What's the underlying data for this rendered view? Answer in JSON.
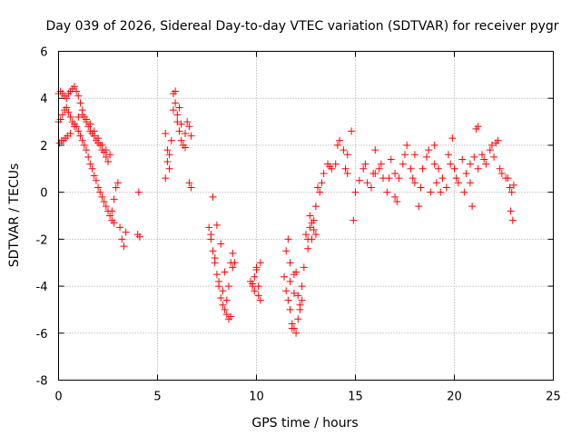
{
  "colors": {
    "series": "#ff0000",
    "grid": "#a0a0a0",
    "frame": "#000000"
  },
  "chart_data": {
    "type": "scatter",
    "title": "Day 039 of 2026, Sidereal Day-to-day VTEC variation (SDTVAR) for receiver pygr",
    "xlabel": "GPS time / hours",
    "ylabel": "SDTVAR / TECUs",
    "xlim": [
      0,
      25
    ],
    "ylim": [
      -8,
      6
    ],
    "xticks": [
      0,
      5,
      10,
      15,
      20,
      25
    ],
    "yticks": [
      -8,
      -6,
      -4,
      -2,
      0,
      2,
      4,
      6
    ],
    "grid": true,
    "marker": "+",
    "series": [
      {
        "name": "SDTVAR",
        "x": [
          0.0,
          0.1,
          0.2,
          0.3,
          0.4,
          0.5,
          0.6,
          0.7,
          0.8,
          0.9,
          1.0,
          1.1,
          1.2,
          1.3,
          1.4,
          1.5,
          1.6,
          1.7,
          1.8,
          1.9,
          2.0,
          2.1,
          2.2,
          2.3,
          2.4,
          2.5,
          0.0,
          0.1,
          0.2,
          0.3,
          0.4,
          0.5,
          0.6,
          0.7,
          0.8,
          0.9,
          1.0,
          1.1,
          1.2,
          1.3,
          1.4,
          1.5,
          1.6,
          1.7,
          1.8,
          1.9,
          2.0,
          2.1,
          2.2,
          2.3,
          2.4,
          2.5,
          2.6,
          2.7,
          2.8,
          0.05,
          0.15,
          0.25,
          0.35,
          0.45,
          0.6,
          0.8,
          1.0,
          1.2,
          1.4,
          1.6,
          1.8,
          2.0,
          2.2,
          2.4,
          2.6,
          2.7,
          2.8,
          2.9,
          3.0,
          3.1,
          3.2,
          3.3,
          3.4,
          4.0,
          4.1,
          4.05,
          5.4,
          5.5,
          5.6,
          5.7,
          5.8,
          5.9,
          6.0,
          6.1,
          6.2,
          6.3,
          6.4,
          6.5,
          6.6,
          6.7,
          5.6,
          5.8,
          6.0,
          6.2,
          6.4,
          5.4,
          5.5,
          5.9,
          6.1,
          6.6,
          6.7,
          7.6,
          7.7,
          7.8,
          7.9,
          8.0,
          8.1,
          8.2,
          8.3,
          8.4,
          8.5,
          8.6,
          8.7,
          8.8,
          7.7,
          7.9,
          8.1,
          8.3,
          8.5,
          8.7,
          7.8,
          8.0,
          8.2,
          8.4,
          8.6,
          8.8,
          8.9,
          9.7,
          9.8,
          9.9,
          10.0,
          10.1,
          10.2,
          9.8,
          10.0,
          10.2,
          9.9,
          10.1,
          11.4,
          11.5,
          11.6,
          11.7,
          11.8,
          11.9,
          12.0,
          12.1,
          12.2,
          12.3,
          12.4,
          11.5,
          11.7,
          11.9,
          12.1,
          12.3,
          11.6,
          11.8,
          12.0,
          12.2,
          11.7,
          11.9,
          12.5,
          12.6,
          12.7,
          12.8,
          12.9,
          13.0,
          13.1,
          12.6,
          12.8,
          13.0,
          12.7,
          12.9,
          13.2,
          13.4,
          13.6,
          13.8,
          14.0,
          14.2,
          14.4,
          14.6,
          14.8,
          15.0,
          13.3,
          13.7,
          14.1,
          14.5,
          14.9,
          14.6,
          15.2,
          15.4,
          15.6,
          15.8,
          16.0,
          16.2,
          16.4,
          16.6,
          16.8,
          17.0,
          17.2,
          17.4,
          17.6,
          17.8,
          18.0,
          18.2,
          18.4,
          18.6,
          18.8,
          19.0,
          15.5,
          15.9,
          16.3,
          16.7,
          17.1,
          17.5,
          17.9,
          18.3,
          18.7,
          19.1,
          16.0,
          17.0,
          18.0,
          19.0,
          19.2,
          19.4,
          19.6,
          19.8,
          20.0,
          20.2,
          20.4,
          20.6,
          20.8,
          21.0,
          21.2,
          19.3,
          19.7,
          20.1,
          20.5,
          20.9,
          21.1,
          21.2,
          20.8,
          19.9,
          21.4,
          21.6,
          21.8,
          22.0,
          22.2,
          22.4,
          22.6,
          22.8,
          22.9,
          23.0,
          21.5,
          21.9,
          22.3,
          22.7,
          22.85,
          22.95,
          22.1
        ],
        "y": [
          4.2,
          4.3,
          4.2,
          4.1,
          4.0,
          4.2,
          4.3,
          4.4,
          4.5,
          4.3,
          4.1,
          3.8,
          3.5,
          3.2,
          3.0,
          2.8,
          2.6,
          2.5,
          2.4,
          2.2,
          2.1,
          2.0,
          1.8,
          1.7,
          1.5,
          1.3,
          3.0,
          3.1,
          3.3,
          3.5,
          3.6,
          3.4,
          3.2,
          3.0,
          2.9,
          2.8,
          2.6,
          2.4,
          2.2,
          2.0,
          1.8,
          1.5,
          1.2,
          1.0,
          0.7,
          0.5,
          0.2,
          0.0,
          -0.2,
          -0.4,
          -0.6,
          -0.8,
          -1.0,
          -1.2,
          -1.3,
          2.1,
          2.2,
          2.2,
          2.3,
          2.4,
          2.5,
          2.8,
          3.2,
          3.3,
          3.1,
          2.9,
          2.6,
          2.3,
          2.0,
          1.8,
          1.6,
          -0.8,
          -0.3,
          0.2,
          0.4,
          -1.5,
          -2.0,
          -2.3,
          -1.7,
          -1.8,
          -1.9,
          0.0,
          2.5,
          1.3,
          1.0,
          2.2,
          4.2,
          3.8,
          3.0,
          2.6,
          2.2,
          2.0,
          2.5,
          3.0,
          2.8,
          2.4,
          1.6,
          3.5,
          3.3,
          2.9,
          1.9,
          0.6,
          1.8,
          4.3,
          3.6,
          0.4,
          0.2,
          -1.5,
          -2.0,
          -2.5,
          -3.0,
          -3.5,
          -4.0,
          -4.5,
          -4.8,
          -5.0,
          -5.2,
          -5.4,
          -5.3,
          -3.2,
          -1.8,
          -2.8,
          -3.8,
          -4.2,
          -4.6,
          -3.0,
          -0.2,
          -1.4,
          -2.2,
          -3.4,
          -4.0,
          -2.6,
          -3.0,
          -3.8,
          -4.0,
          -3.6,
          -3.2,
          -4.4,
          -4.6,
          -3.9,
          -3.3,
          -3.0,
          -4.2,
          -4.0,
          -3.6,
          -4.2,
          -4.6,
          -5.0,
          -5.6,
          -5.8,
          -6.0,
          -5.4,
          -4.8,
          -4.0,
          -3.2,
          -2.5,
          -3.0,
          -3.5,
          -4.4,
          -4.6,
          -2.0,
          -5.8,
          -3.4,
          -5.0,
          -3.8,
          -4.3,
          -1.8,
          -2.0,
          -1.5,
          -2.0,
          -1.6,
          -0.6,
          0.2,
          -2.4,
          -1.3,
          -1.8,
          -1.0,
          -1.2,
          0.0,
          0.8,
          1.2,
          1.0,
          1.2,
          2.2,
          1.8,
          1.6,
          2.6,
          0.0,
          0.4,
          1.1,
          2.0,
          1.0,
          -1.2,
          0.8,
          0.5,
          1.0,
          0.4,
          0.2,
          0.8,
          1.0,
          0.6,
          0.0,
          1.4,
          0.8,
          0.6,
          1.2,
          2.0,
          1.0,
          0.4,
          -0.6,
          1.0,
          1.5,
          0.0,
          1.2,
          1.2,
          0.8,
          1.2,
          0.6,
          -0.4,
          1.6,
          0.6,
          0.2,
          1.8,
          0.4,
          1.8,
          -0.2,
          1.6,
          2.0,
          1.0,
          0.6,
          0.2,
          1.2,
          1.0,
          0.4,
          1.4,
          0.8,
          1.2,
          1.5,
          2.8,
          0.0,
          1.6,
          0.6,
          0.0,
          -0.6,
          2.7,
          1.0,
          0.4,
          2.3,
          1.6,
          1.2,
          1.8,
          1.5,
          2.2,
          0.8,
          0.6,
          0.2,
          0.0,
          0.3,
          1.4,
          2.0,
          1.0,
          0.6,
          -0.8,
          -1.2,
          2.1
        ]
      }
    ]
  }
}
